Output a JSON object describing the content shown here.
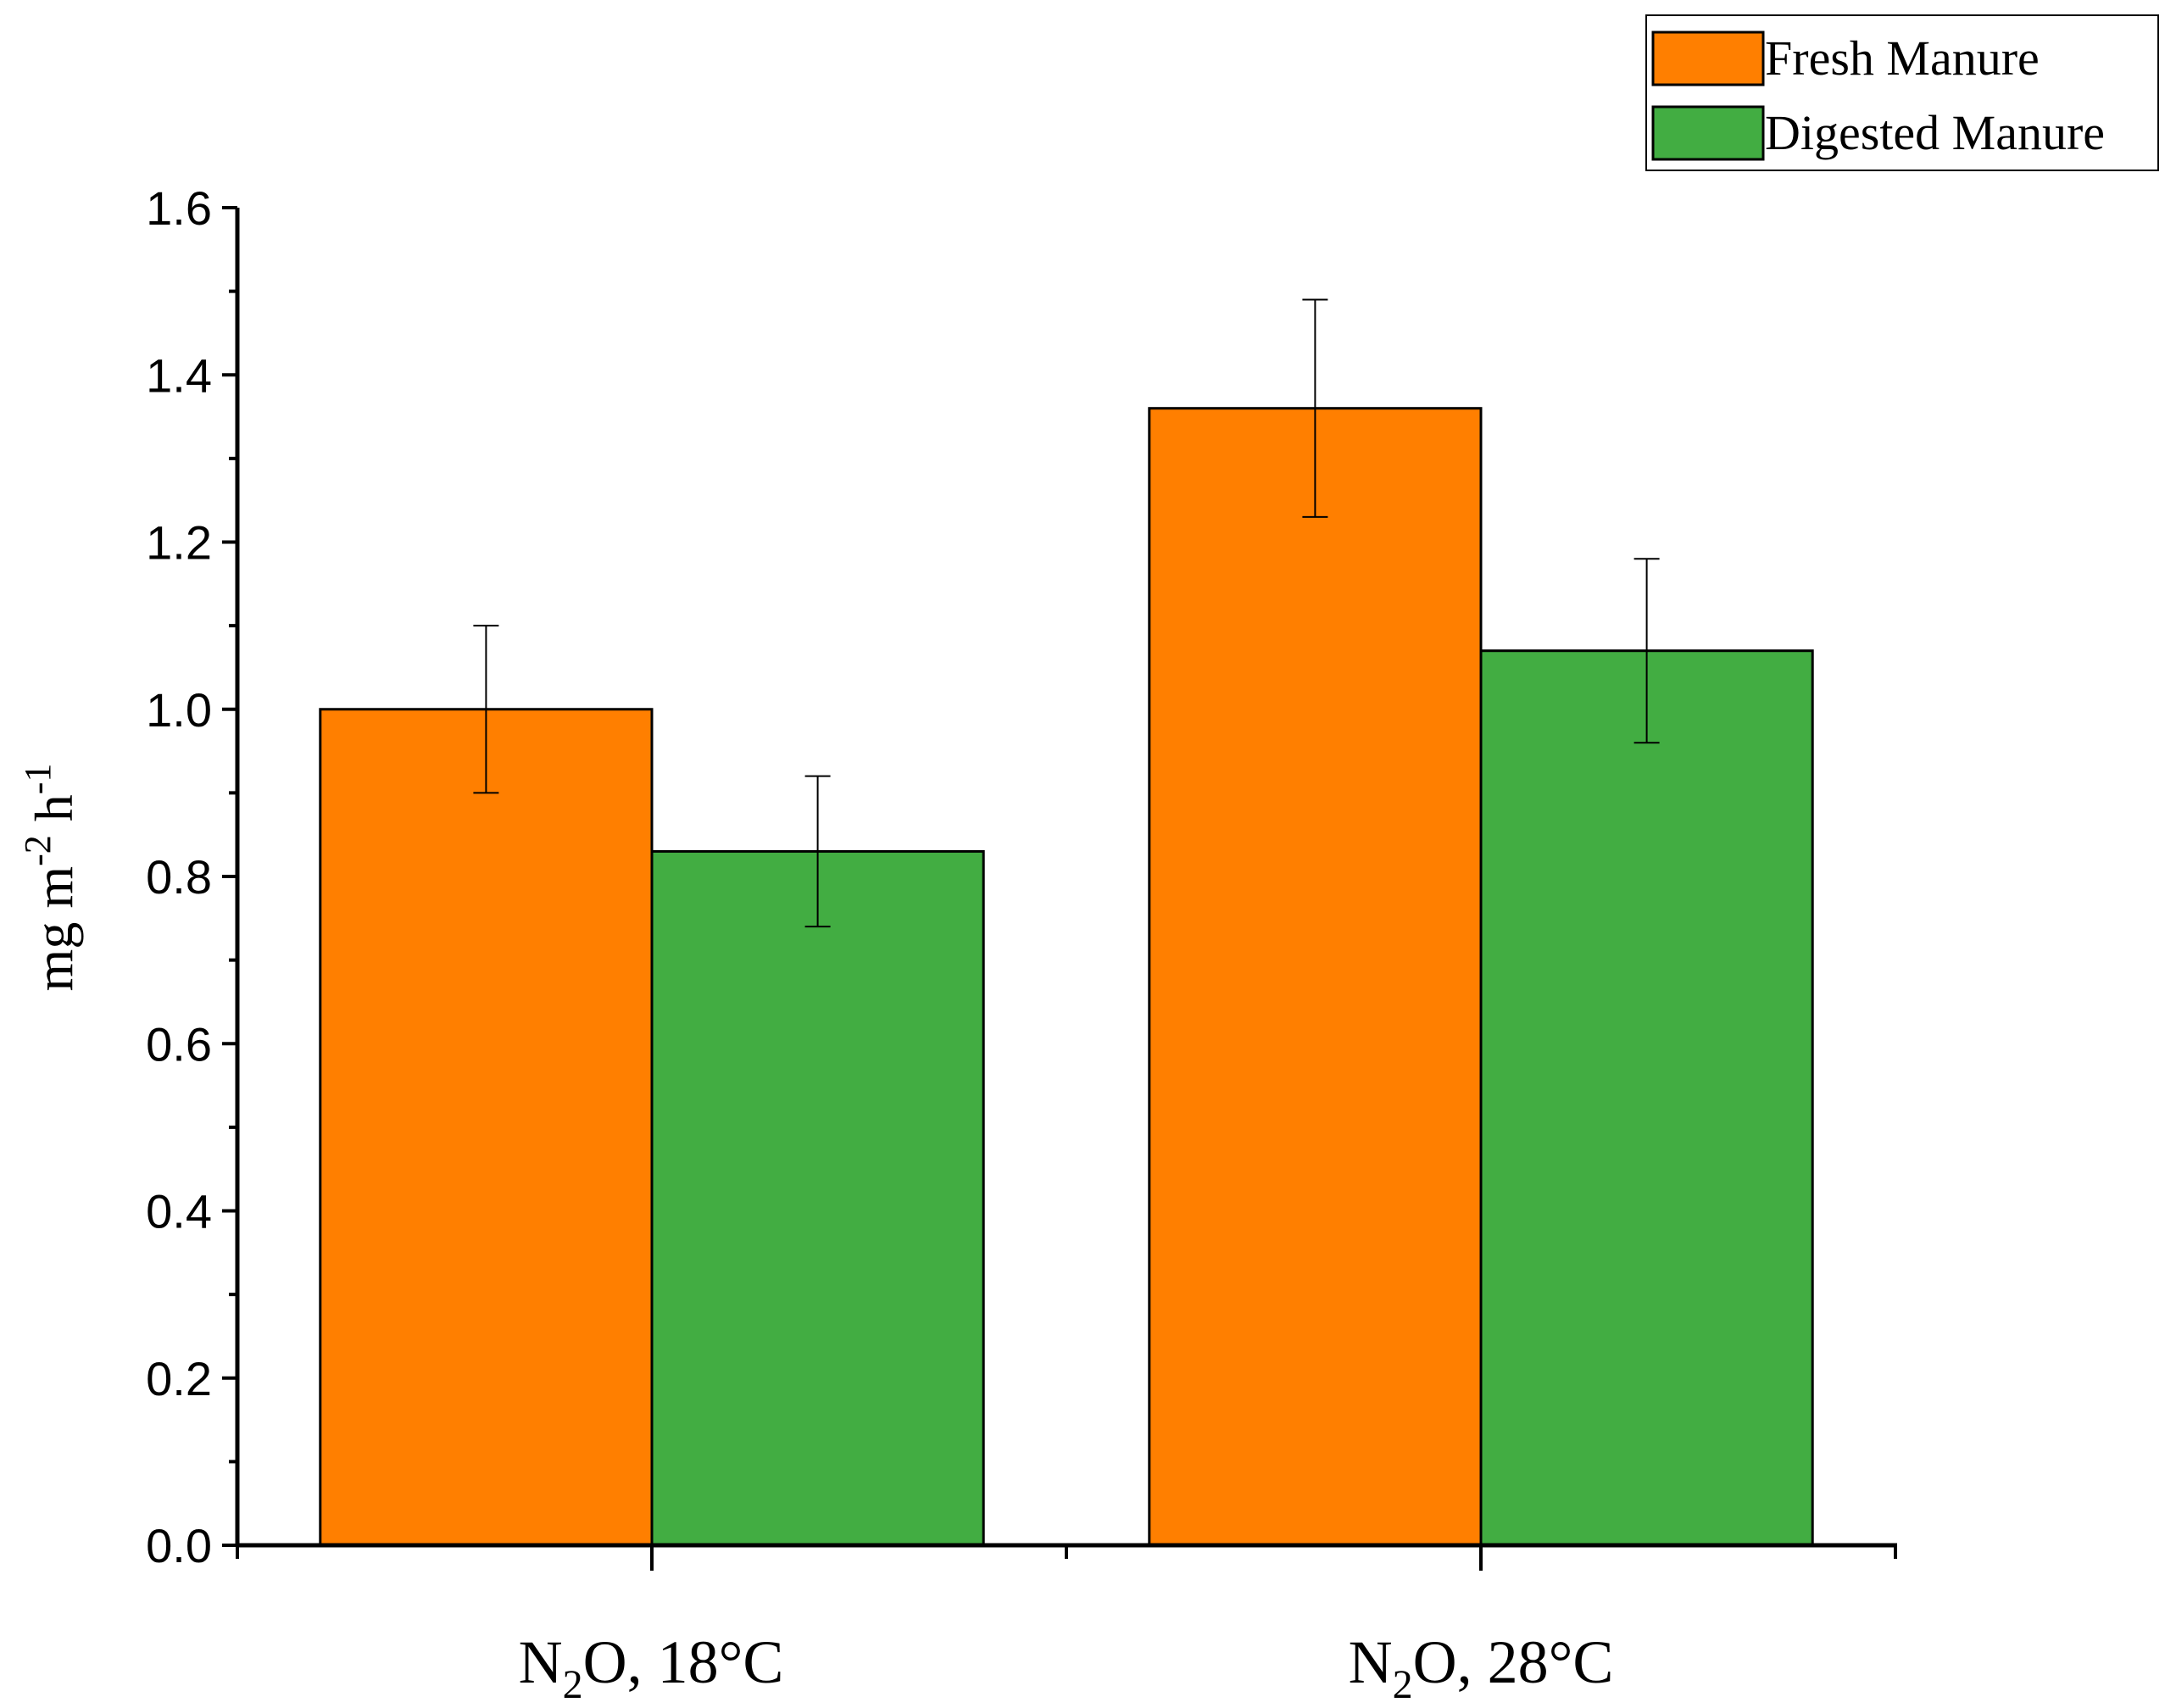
{
  "chart_data": {
    "type": "bar",
    "title": "",
    "categories": [
      {
        "main": "N",
        "sub": "2",
        "rest": "O, 18°C"
      },
      {
        "main": "N",
        "sub": "2",
        "rest": "O, 28°C"
      }
    ],
    "series": [
      {
        "name": "Fresh Manure",
        "color": "#FF7F00",
        "values": [
          1.0,
          1.36
        ],
        "errors": [
          0.1,
          0.13
        ]
      },
      {
        "name": "Digested Manure",
        "color": "#42AD42",
        "values": [
          0.83,
          1.07
        ],
        "errors": [
          0.09,
          0.11
        ]
      }
    ],
    "ylabel": {
      "base1": "mg m",
      "sup1": "-2",
      "base2": " h",
      "sup2": "-1"
    },
    "xlabel": "",
    "ylim": [
      0,
      1.6
    ],
    "yticks": [
      "0.0",
      "0.2",
      "0.4",
      "0.6",
      "0.8",
      "1.0",
      "1.2",
      "1.4",
      "1.6"
    ],
    "grid": false,
    "legend_position": "top-right"
  }
}
